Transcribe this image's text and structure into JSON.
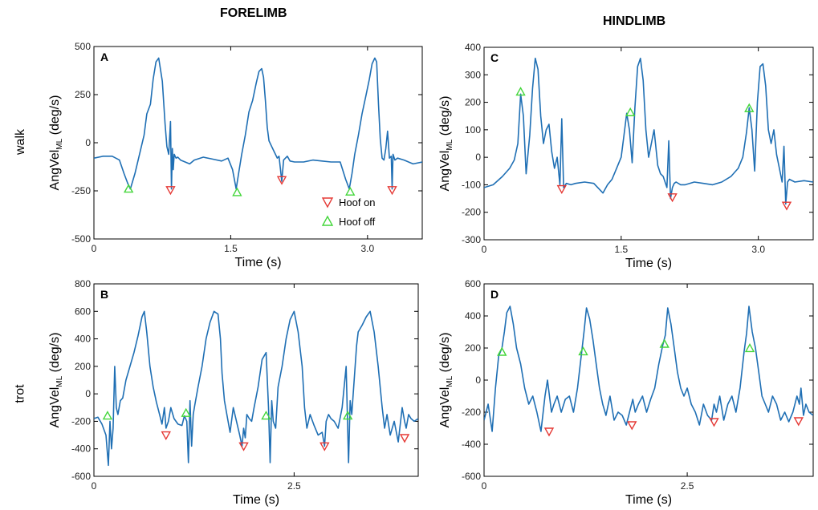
{
  "figure": {
    "column_titles": [
      "FORELIMB",
      "HINDLIMB"
    ],
    "row_labels": [
      "walk",
      "trot"
    ],
    "colors": {
      "signal": "#1f6fb4",
      "hoof_on": "#e53935",
      "hoof_off": "#43d63a",
      "axes": "#000000"
    }
  },
  "chart_data": [
    {
      "type": "line",
      "panel": "A",
      "xlabel": "Time (s)",
      "ylabel": "AngVel",
      "ylabel_subscript": "ML",
      "ylabel_units": "(deg/s)",
      "xlim": [
        0,
        3.6
      ],
      "ylim": [
        -500,
        500
      ],
      "xticks": [
        0,
        1.5,
        3.0
      ],
      "xtick_labels": [
        "0",
        "1.5",
        "3.0"
      ],
      "yticks": [
        -500,
        -250,
        0,
        250,
        500
      ],
      "ytick_labels": [
        "-500",
        "-250",
        "0",
        "250",
        "500"
      ],
      "legend": {
        "position": "bottom-right",
        "entries": [
          "Hoof on",
          "Hoof off"
        ]
      },
      "series": [
        {
          "x": [
            0.0,
            0.1,
            0.2,
            0.28,
            0.33,
            0.37,
            0.4,
            0.45,
            0.5,
            0.55,
            0.58,
            0.62,
            0.65,
            0.68,
            0.71,
            0.75,
            0.78,
            0.8,
            0.82,
            0.84,
            0.85,
            0.86,
            0.87,
            0.88,
            0.9,
            0.92,
            0.95,
            1.0,
            1.05,
            1.1,
            1.2,
            1.3,
            1.4,
            1.47,
            1.52,
            1.56,
            1.59,
            1.62,
            1.66,
            1.7,
            1.74,
            1.78,
            1.81,
            1.84,
            1.86,
            1.88,
            1.9,
            1.92,
            1.95,
            1.97,
            1.99,
            2.01,
            2.03,
            2.06,
            2.08,
            2.1,
            2.12,
            2.15,
            2.2,
            2.3,
            2.4,
            2.5,
            2.6,
            2.7,
            2.76,
            2.8,
            2.83,
            2.86,
            2.9,
            2.94,
            2.98,
            3.02,
            3.05,
            3.08,
            3.1,
            3.12,
            3.14,
            3.16,
            3.18,
            3.2,
            3.22,
            3.24,
            3.26,
            3.27,
            3.28,
            3.3,
            3.33,
            3.4,
            3.5,
            3.6
          ],
          "y": [
            -80,
            -70,
            -70,
            -90,
            -160,
            -210,
            -240,
            -160,
            -60,
            40,
            150,
            200,
            330,
            420,
            440,
            320,
            100,
            -20,
            -60,
            110,
            -240,
            -30,
            -140,
            -60,
            -80,
            -75,
            -90,
            -100,
            -110,
            -90,
            -75,
            -85,
            -95,
            -80,
            -140,
            -240,
            -150,
            -60,
            40,
            160,
            220,
            310,
            370,
            385,
            340,
            220,
            80,
            10,
            -20,
            -40,
            -60,
            -80,
            -70,
            -200,
            -90,
            -80,
            -70,
            -95,
            -100,
            -100,
            -90,
            -95,
            -100,
            -100,
            -190,
            -240,
            -160,
            -60,
            40,
            150,
            240,
            330,
            410,
            440,
            420,
            200,
            20,
            -80,
            -90,
            -30,
            60,
            -80,
            -70,
            -240,
            -60,
            -90,
            -80,
            -90,
            -110,
            -100
          ]
        }
      ],
      "hoof_on": [
        [
          0.84,
          -245
        ],
        [
          2.06,
          -193
        ],
        [
          3.27,
          -245
        ]
      ],
      "hoof_off": [
        [
          0.38,
          -240
        ],
        [
          1.57,
          -258
        ],
        [
          2.81,
          -255
        ]
      ]
    },
    {
      "type": "line",
      "panel": "B",
      "xlabel": "Time (s)",
      "ylabel": "AngVel",
      "ylabel_subscript": "ML",
      "ylabel_units": "(deg/s)",
      "xlim": [
        0,
        4.05
      ],
      "ylim": [
        -600,
        800
      ],
      "xticks": [
        0,
        2.5
      ],
      "xtick_labels": [
        "0",
        "2.5"
      ],
      "yticks": [
        -600,
        -400,
        -200,
        0,
        200,
        400,
        600,
        800
      ],
      "ytick_labels": [
        "-600",
        "-400",
        "-200",
        "0",
        "200",
        "400",
        "600",
        "800"
      ],
      "series": [
        {
          "x": [
            0.0,
            0.05,
            0.1,
            0.15,
            0.18,
            0.2,
            0.22,
            0.24,
            0.26,
            0.28,
            0.3,
            0.33,
            0.36,
            0.4,
            0.45,
            0.5,
            0.55,
            0.6,
            0.63,
            0.66,
            0.7,
            0.74,
            0.78,
            0.82,
            0.85,
            0.88,
            0.9,
            0.93,
            0.96,
            1.0,
            1.05,
            1.1,
            1.13,
            1.16,
            1.18,
            1.2,
            1.22,
            1.24,
            1.26,
            1.3,
            1.35,
            1.4,
            1.45,
            1.5,
            1.55,
            1.58,
            1.6,
            1.63,
            1.66,
            1.7,
            1.74,
            1.78,
            1.82,
            1.85,
            1.87,
            1.89,
            1.91,
            1.94,
            1.97,
            2.0,
            2.05,
            2.1,
            2.15,
            2.18,
            2.2,
            2.22,
            2.24,
            2.27,
            2.3,
            2.35,
            2.4,
            2.45,
            2.5,
            2.55,
            2.6,
            2.63,
            2.66,
            2.7,
            2.75,
            2.8,
            2.85,
            2.88,
            2.9,
            2.93,
            2.96,
            3.0,
            3.05,
            3.1,
            3.15,
            3.18,
            3.2,
            3.22,
            3.25,
            3.28,
            3.3,
            3.35,
            3.4,
            3.45,
            3.5,
            3.55,
            3.6,
            3.63,
            3.66,
            3.7,
            3.75,
            3.8,
            3.85,
            3.88,
            3.9,
            3.93,
            3.96,
            4.0,
            4.05
          ],
          "y": [
            -180,
            -170,
            -220,
            -300,
            -520,
            -200,
            -400,
            -250,
            200,
            -100,
            -150,
            -50,
            -30,
            100,
            200,
            300,
            420,
            560,
            600,
            450,
            200,
            50,
            -60,
            -150,
            -220,
            -100,
            -250,
            -200,
            -100,
            -180,
            -220,
            -230,
            -160,
            -200,
            -500,
            -50,
            -380,
            -150,
            -80,
            50,
            200,
            400,
            520,
            600,
            580,
            400,
            150,
            -50,
            -150,
            -280,
            -100,
            -200,
            -300,
            -380,
            -250,
            -320,
            -150,
            -180,
            -200,
            -100,
            50,
            250,
            300,
            -100,
            -500,
            -50,
            -200,
            -250,
            50,
            200,
            400,
            540,
            600,
            450,
            200,
            -100,
            -250,
            -150,
            -230,
            -300,
            -280,
            -380,
            -200,
            -150,
            -180,
            -200,
            -250,
            -100,
            200,
            -500,
            -50,
            -150,
            100,
            350,
            450,
            500,
            560,
            600,
            450,
            200,
            -100,
            -250,
            -150,
            -300,
            -200,
            -350,
            -100,
            -200,
            -250,
            -150,
            -180,
            -200,
            -180
          ]
        }
      ],
      "hoof_on": [
        [
          0.9,
          -300
        ],
        [
          1.87,
          -380
        ],
        [
          2.88,
          -380
        ],
        [
          3.88,
          -320
        ]
      ],
      "hoof_off": [
        [
          0.17,
          -160
        ],
        [
          1.15,
          -140
        ],
        [
          2.15,
          -160
        ],
        [
          3.17,
          -160
        ]
      ]
    },
    {
      "type": "line",
      "panel": "C",
      "xlabel": "Time (s)",
      "ylabel": "AngVel",
      "ylabel_subscript": "ML",
      "ylabel_units": "(deg/s)",
      "xlim": [
        0,
        3.6
      ],
      "ylim": [
        -300,
        400
      ],
      "xticks": [
        0,
        1.5,
        3.0
      ],
      "xtick_labels": [
        "0",
        "1.5",
        "3.0"
      ],
      "yticks": [
        -300,
        -200,
        -100,
        0,
        100,
        200,
        300,
        400
      ],
      "ytick_labels": [
        "-300",
        "-200",
        "-100",
        "0",
        "100",
        "200",
        "300",
        "400"
      ],
      "series": [
        {
          "x": [
            0.0,
            0.1,
            0.2,
            0.28,
            0.33,
            0.37,
            0.4,
            0.43,
            0.46,
            0.5,
            0.53,
            0.56,
            0.59,
            0.62,
            0.65,
            0.68,
            0.71,
            0.74,
            0.77,
            0.8,
            0.83,
            0.85,
            0.87,
            0.9,
            0.95,
            1.0,
            1.1,
            1.2,
            1.3,
            1.35,
            1.4,
            1.45,
            1.5,
            1.53,
            1.56,
            1.59,
            1.62,
            1.65,
            1.68,
            1.71,
            1.74,
            1.77,
            1.8,
            1.83,
            1.86,
            1.9,
            1.93,
            1.96,
            2.0,
            2.02,
            2.04,
            2.06,
            2.08,
            2.1,
            2.15,
            2.2,
            2.3,
            2.4,
            2.5,
            2.6,
            2.7,
            2.78,
            2.83,
            2.87,
            2.9,
            2.93,
            2.96,
            2.99,
            3.02,
            3.05,
            3.08,
            3.11,
            3.14,
            3.17,
            3.2,
            3.23,
            3.26,
            3.28,
            3.3,
            3.32,
            3.34,
            3.4,
            3.5,
            3.6
          ],
          "y": [
            -110,
            -100,
            -70,
            -40,
            -10,
            50,
            230,
            150,
            -60,
            80,
            250,
            360,
            320,
            150,
            50,
            100,
            120,
            20,
            -40,
            0,
            -100,
            140,
            -110,
            -95,
            -100,
            -95,
            -90,
            -95,
            -130,
            -100,
            -80,
            -40,
            0,
            80,
            160,
            100,
            -20,
            180,
            330,
            360,
            280,
            100,
            0,
            50,
            100,
            -30,
            -60,
            -70,
            -110,
            60,
            -150,
            -110,
            -95,
            -90,
            -100,
            -100,
            -90,
            -95,
            -100,
            -90,
            -70,
            -40,
            0,
            90,
            180,
            100,
            -50,
            200,
            330,
            340,
            260,
            100,
            50,
            100,
            10,
            -40,
            -90,
            40,
            -170,
            -90,
            -80,
            -90,
            -85,
            -90
          ]
        }
      ],
      "hoof_on": [
        [
          0.85,
          -115
        ],
        [
          2.06,
          -145
        ],
        [
          3.31,
          -175
        ]
      ],
      "hoof_off": [
        [
          0.4,
          238
        ],
        [
          1.6,
          163
        ],
        [
          2.9,
          178
        ]
      ]
    },
    {
      "type": "line",
      "panel": "D",
      "xlabel": "Time (s)",
      "ylabel": "AngVel",
      "ylabel_subscript": "ML",
      "ylabel_units": "(deg/s)",
      "xlim": [
        0,
        4.05
      ],
      "ylim": [
        -600,
        600
      ],
      "xticks": [
        0,
        2.5
      ],
      "xtick_labels": [
        "0",
        "2.5"
      ],
      "yticks": [
        -600,
        -400,
        -200,
        0,
        200,
        400,
        600
      ],
      "ytick_labels": [
        "-600",
        "-400",
        "-200",
        "0",
        "200",
        "400",
        "600"
      ],
      "series": [
        {
          "x": [
            0.0,
            0.05,
            0.1,
            0.14,
            0.18,
            0.22,
            0.25,
            0.28,
            0.32,
            0.36,
            0.4,
            0.45,
            0.5,
            0.55,
            0.6,
            0.65,
            0.7,
            0.75,
            0.78,
            0.8,
            0.83,
            0.86,
            0.9,
            0.95,
            1.0,
            1.05,
            1.1,
            1.15,
            1.2,
            1.23,
            1.26,
            1.3,
            1.34,
            1.38,
            1.42,
            1.46,
            1.5,
            1.55,
            1.6,
            1.65,
            1.7,
            1.75,
            1.8,
            1.83,
            1.86,
            1.9,
            1.95,
            2.0,
            2.05,
            2.1,
            2.15,
            2.2,
            2.23,
            2.26,
            2.3,
            2.34,
            2.38,
            2.42,
            2.46,
            2.5,
            2.55,
            2.6,
            2.65,
            2.7,
            2.75,
            2.8,
            2.83,
            2.86,
            2.9,
            2.95,
            3.0,
            3.05,
            3.1,
            3.15,
            3.2,
            3.23,
            3.26,
            3.3,
            3.34,
            3.38,
            3.42,
            3.46,
            3.5,
            3.55,
            3.6,
            3.65,
            3.7,
            3.75,
            3.8,
            3.85,
            3.88,
            3.9,
            3.93,
            3.96,
            4.0,
            4.05
          ],
          "y": [
            -250,
            -150,
            -320,
            -50,
            150,
            200,
            300,
            420,
            460,
            350,
            200,
            100,
            -50,
            -150,
            -100,
            -200,
            -320,
            -100,
            0,
            -80,
            -200,
            -150,
            -100,
            -200,
            -120,
            -100,
            -200,
            -50,
            170,
            300,
            450,
            380,
            250,
            100,
            -50,
            -150,
            -220,
            -100,
            -250,
            -200,
            -220,
            -280,
            -180,
            -120,
            -200,
            -150,
            -100,
            -200,
            -120,
            -50,
            100,
            220,
            280,
            450,
            350,
            200,
            50,
            -50,
            -100,
            -50,
            -150,
            -200,
            -280,
            -150,
            -220,
            -250,
            -150,
            -200,
            -100,
            -250,
            -150,
            -100,
            -200,
            -50,
            180,
            290,
            460,
            300,
            200,
            50,
            -100,
            -150,
            -200,
            -100,
            -150,
            -250,
            -200,
            -260,
            -200,
            -100,
            -150,
            -50,
            -220,
            -150,
            -200,
            -220
          ]
        }
      ],
      "hoof_on": [
        [
          0.8,
          -320
        ],
        [
          1.82,
          -280
        ],
        [
          2.83,
          -260
        ],
        [
          3.87,
          -255
        ]
      ],
      "hoof_off": [
        [
          0.22,
          175
        ],
        [
          1.22,
          178
        ],
        [
          2.22,
          225
        ],
        [
          3.27,
          198
        ]
      ]
    }
  ]
}
